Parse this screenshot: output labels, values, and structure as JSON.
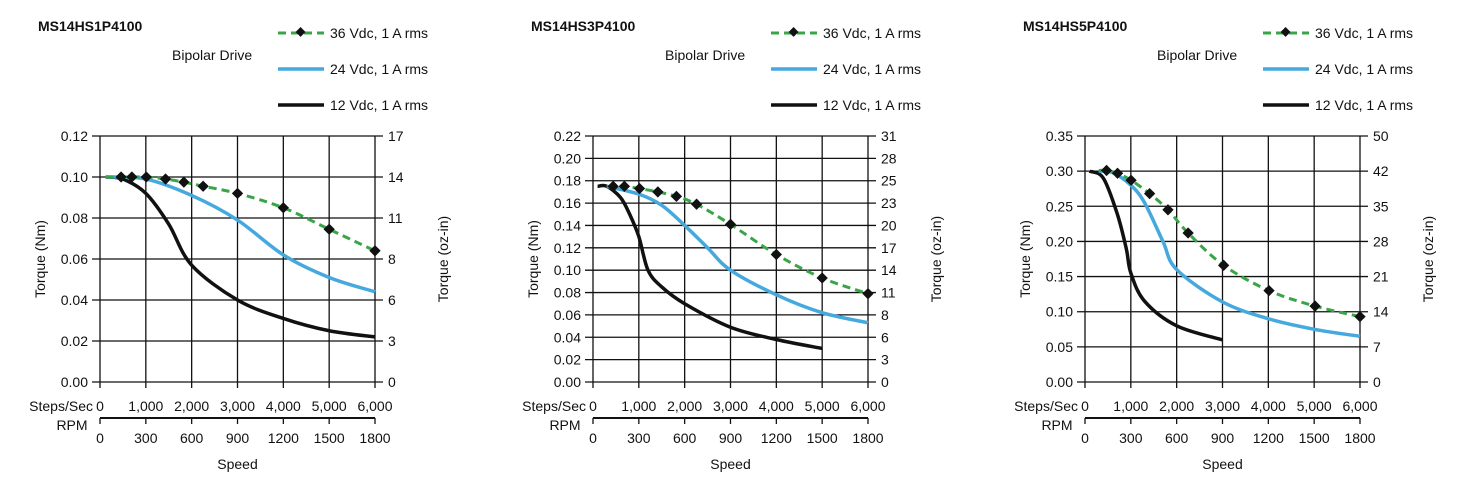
{
  "colors": {
    "v36": "#3aa548",
    "v24": "#45a9de",
    "v12": "#111111"
  },
  "chart_data": [
    {
      "type": "line",
      "title": "MS14HS1P4100",
      "subtitle": "Bipolar Drive",
      "ylabel": "Torque (Nm)",
      "y2label": "Torque (oz-in)",
      "xlabel": "Speed",
      "x_label_steps": "Steps/Sec",
      "x_label_rpm": "RPM",
      "ylim": [
        0,
        0.12
      ],
      "yticks": [
        "0.00",
        "0.02",
        "0.04",
        "0.06",
        "0.08",
        "0.10",
        "0.12"
      ],
      "y2ticks": [
        "0",
        "3",
        "6",
        "8",
        "11",
        "14",
        "17"
      ],
      "xlim": [
        0,
        6000
      ],
      "xticks": [
        "0",
        "1,000",
        "2,000",
        "3,000",
        "4,000",
        "5,000",
        "6,000"
      ],
      "rpmticks": [
        "0",
        "300",
        "600",
        "900",
        "1200",
        "1500",
        "1800"
      ],
      "grid": true,
      "legend": "top-right",
      "series": [
        {
          "name": "36 Vdc, 1 A rms",
          "key": "v36",
          "style": "dashed-markers",
          "x": [
            460,
            695,
            1010,
            1430,
            1830,
            2250,
            3000,
            4000,
            5000,
            6000
          ],
          "y": [
            0.1,
            0.1,
            0.1,
            0.099,
            0.0975,
            0.0955,
            0.092,
            0.085,
            0.0745,
            0.064
          ]
        },
        {
          "name": "24 Vdc, 1 A rms",
          "key": "v24",
          "style": "solid",
          "x": [
            125,
            1000,
            2000,
            3000,
            4000,
            5000,
            6000
          ],
          "y": [
            0.1,
            0.099,
            0.091,
            0.079,
            0.062,
            0.051,
            0.044
          ]
        },
        {
          "name": "12 Vdc, 1 A rms",
          "key": "v12",
          "style": "solid",
          "x": [
            125,
            500,
            1000,
            1500,
            2000,
            3000,
            4000,
            5000,
            6000
          ],
          "y": [
            0.1,
            0.099,
            0.092,
            0.077,
            0.057,
            0.04,
            0.031,
            0.025,
            0.022
          ]
        }
      ]
    },
    {
      "type": "line",
      "title": "MS14HS3P4100",
      "subtitle": "Bipolar Drive",
      "ylabel": "Torque (Nm)",
      "y2label": "Torque (oz-in)",
      "xlabel": "Speed",
      "x_label_steps": "Steps/Sec",
      "x_label_rpm": "RPM",
      "ylim": [
        0,
        0.22
      ],
      "yticks": [
        "0.00",
        "0.02",
        "0.04",
        "0.06",
        "0.08",
        "0.10",
        "0.12",
        "0.14",
        "0.16",
        "0.18",
        "0.20",
        "0.22"
      ],
      "y2ticks": [
        "0",
        "3",
        "6",
        "8",
        "11",
        "14",
        "17",
        "20",
        "23",
        "25",
        "28",
        "31"
      ],
      "xlim": [
        0,
        6000
      ],
      "xticks": [
        "0",
        "1,000",
        "2,000",
        "3,000",
        "4,000",
        "5,000",
        "6,000"
      ],
      "rpmticks": [
        "0",
        "300",
        "600",
        "900",
        "1200",
        "1500",
        "1800"
      ],
      "grid": true,
      "legend": "top-right",
      "series": [
        {
          "name": "36 Vdc, 1 A rms",
          "key": "v36",
          "style": "dashed-markers",
          "x": [
            440,
            685,
            1015,
            1415,
            1820,
            2260,
            3000,
            4000,
            5000,
            6000
          ],
          "y": [
            0.175,
            0.175,
            0.173,
            0.17,
            0.166,
            0.159,
            0.141,
            0.114,
            0.093,
            0.079
          ]
        },
        {
          "name": "24 Vdc, 1 A rms",
          "key": "v24",
          "style": "solid",
          "x": [
            300,
            1000,
            1500,
            2000,
            2500,
            3000,
            4000,
            5000,
            6000
          ],
          "y": [
            0.175,
            0.168,
            0.158,
            0.14,
            0.12,
            0.1,
            0.078,
            0.062,
            0.053
          ]
        },
        {
          "name": "12 Vdc, 1 A rms",
          "key": "v12",
          "style": "solid",
          "x": [
            100,
            300,
            600,
            800,
            1000,
            1200,
            1500,
            2000,
            3000,
            4000,
            5000
          ],
          "y": [
            0.175,
            0.175,
            0.165,
            0.15,
            0.13,
            0.1,
            0.085,
            0.07,
            0.049,
            0.038,
            0.03
          ]
        }
      ]
    },
    {
      "type": "line",
      "title": "MS14HS5P4100",
      "subtitle": "Bipolar Drive",
      "ylabel": "Torque (Nm)",
      "y2label": "Torque (oz-in)",
      "xlabel": "Speed",
      "x_label_steps": "Steps/Sec",
      "x_label_rpm": "RPM",
      "ylim": [
        0,
        0.35
      ],
      "yticks": [
        "0.00",
        "0.05",
        "0.10",
        "0.15",
        "0.20",
        "0.25",
        "0.30",
        "0.35"
      ],
      "y2ticks": [
        "0",
        "7",
        "14",
        "21",
        "28",
        "35",
        "42",
        "50"
      ],
      "xlim": [
        0,
        6000
      ],
      "xticks": [
        "0",
        "1,000",
        "2,000",
        "3,000",
        "4,000",
        "5,000",
        "6,000"
      ],
      "rpmticks": [
        "0",
        "300",
        "600",
        "900",
        "1200",
        "1500",
        "1800"
      ],
      "grid": true,
      "legend": "top-right",
      "series": [
        {
          "name": "36 Vdc, 1 A rms",
          "key": "v36",
          "style": "dashed-markers",
          "x": [
            470,
            710,
            1005,
            1410,
            1810,
            2250,
            3025,
            4015,
            5020,
            6000
          ],
          "y": [
            0.301,
            0.297,
            0.287,
            0.268,
            0.245,
            0.212,
            0.166,
            0.13,
            0.108,
            0.093
          ]
        },
        {
          "name": "24 Vdc, 1 A rms",
          "key": "v24",
          "style": "solid",
          "x": [
            300,
            600,
            1000,
            1300,
            1700,
            2000,
            3000,
            4000,
            5000,
            6000
          ],
          "y": [
            0.3,
            0.298,
            0.28,
            0.255,
            0.2,
            0.16,
            0.114,
            0.09,
            0.075,
            0.065
          ]
        },
        {
          "name": "12 Vdc, 1 A rms",
          "key": "v12",
          "style": "solid",
          "x": [
            100,
            400,
            700,
            900,
            1000,
            1300,
            2000,
            3000
          ],
          "y": [
            0.3,
            0.29,
            0.24,
            0.19,
            0.155,
            0.115,
            0.08,
            0.06
          ]
        }
      ]
    }
  ]
}
